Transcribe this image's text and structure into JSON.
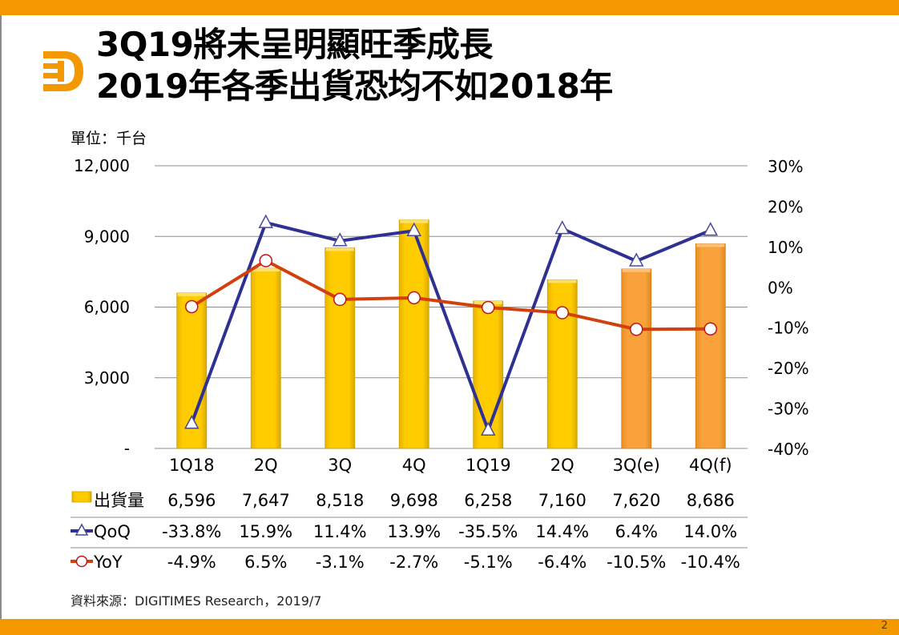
{
  "slide": {
    "title_line1": "3Q19將未呈明顯旺季成長",
    "title_line2": "2019年各季出貨恐均不如2018年",
    "unit_label": "單位：千台",
    "source": "資料來源：DIGITIMES Research，2019/7",
    "page_number": "2",
    "logo": "digitimes-d-logo"
  },
  "colors": {
    "accent_bar": "#f39800",
    "bar_actual": "#ffcc00",
    "bar_forecast": "#f9a23b",
    "qoq_line": "#2e3192",
    "yoy_line": "#d2400e",
    "logo": "#f39800"
  },
  "chart_data": {
    "type": "bar",
    "title": "3Q19將未呈明顯旺季成長 / 2019年各季出貨恐均不如2018年",
    "categories": [
      "1Q18",
      "2Q",
      "3Q",
      "4Q",
      "1Q19",
      "2Q",
      "3Q(e)",
      "4Q(f)"
    ],
    "forecast_flags": [
      false,
      false,
      false,
      false,
      false,
      false,
      true,
      true
    ],
    "left_axis": {
      "label": "單位：千台",
      "ylim": [
        0,
        12000
      ],
      "ticks": [
        0,
        3000,
        6000,
        9000,
        12000
      ],
      "tick_labels": [
        "-",
        "3,000",
        "6,000",
        "9,000",
        "12,000"
      ]
    },
    "right_axis": {
      "ylim": [
        -40,
        30
      ],
      "ticks": [
        30,
        20,
        10,
        0,
        -10,
        -20,
        -30,
        -40
      ],
      "tick_labels": [
        "30%",
        "20%",
        "10%",
        "0%",
        "-10%",
        "-20%",
        "-30%",
        "-40%"
      ]
    },
    "grid": true,
    "series": [
      {
        "name": "出貨量",
        "type": "bar",
        "axis": "left",
        "values": [
          6596,
          7647,
          8518,
          9698,
          6258,
          7160,
          7620,
          8686
        ],
        "labels": [
          "6,596",
          "7,647",
          "8,518",
          "9,698",
          "6,258",
          "7,160",
          "7,620",
          "8,686"
        ]
      },
      {
        "name": "QoQ",
        "type": "line",
        "axis": "right",
        "marker": "triangle",
        "values": [
          -33.8,
          15.9,
          11.4,
          13.9,
          -35.5,
          14.4,
          6.4,
          14.0
        ],
        "labels": [
          "-33.8%",
          "15.9%",
          "11.4%",
          "13.9%",
          "-35.5%",
          "14.4%",
          "6.4%",
          "14.0%"
        ]
      },
      {
        "name": "YoY",
        "type": "line",
        "axis": "right",
        "marker": "circle",
        "values": [
          -4.9,
          6.5,
          -3.1,
          -2.7,
          -5.1,
          -6.4,
          -10.5,
          -10.4
        ],
        "labels": [
          "-4.9%",
          "6.5%",
          "-3.1%",
          "-2.7%",
          "-5.1%",
          "-6.4%",
          "-10.5%",
          "-10.4%"
        ]
      }
    ],
    "legend": "data-table-below"
  }
}
